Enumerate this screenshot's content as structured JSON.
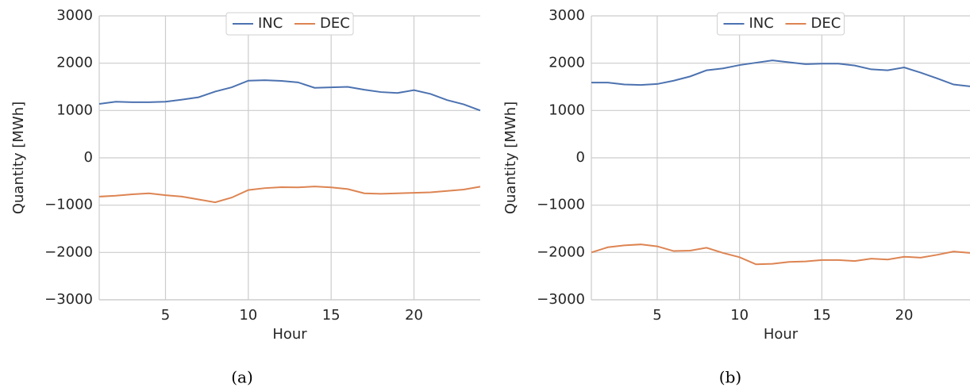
{
  "chart_data": [
    {
      "type": "line",
      "xlabel": "Hour",
      "ylabel": "Quantity [MWh]",
      "caption": "(a)",
      "x": [
        1,
        2,
        3,
        4,
        5,
        6,
        7,
        8,
        9,
        10,
        11,
        12,
        13,
        14,
        15,
        16,
        17,
        18,
        19,
        20,
        21,
        22,
        23,
        24
      ],
      "series": [
        {
          "name": "INC",
          "color": "#4c72b0",
          "values": [
            1140,
            1185,
            1175,
            1175,
            1185,
            1230,
            1280,
            1400,
            1490,
            1630,
            1640,
            1625,
            1595,
            1480,
            1490,
            1500,
            1440,
            1390,
            1370,
            1430,
            1350,
            1220,
            1130,
            1000
          ]
        },
        {
          "name": "DEC",
          "color": "#dd8452",
          "values": [
            -820,
            -800,
            -770,
            -750,
            -790,
            -820,
            -880,
            -940,
            -840,
            -680,
            -640,
            -620,
            -625,
            -605,
            -625,
            -660,
            -750,
            -760,
            -750,
            -740,
            -730,
            -700,
            -670,
            -610
          ]
        }
      ],
      "xlim": [
        1,
        24
      ],
      "xticks": [
        5,
        10,
        15,
        20
      ],
      "ylim": [
        -3000,
        3000
      ],
      "yticks": [
        {
          "value": -3000,
          "label": "−3000"
        },
        {
          "value": -2000,
          "label": "−2000"
        },
        {
          "value": -1000,
          "label": "−1000"
        },
        0,
        1000,
        2000,
        3000
      ],
      "grid": true,
      "legend": "upper center"
    },
    {
      "type": "line",
      "xlabel": "Hour",
      "ylabel": "Quantity [MWh]",
      "caption": "(b)",
      "x": [
        1,
        2,
        3,
        4,
        5,
        6,
        7,
        8,
        9,
        10,
        11,
        12,
        13,
        14,
        15,
        16,
        17,
        18,
        19,
        20,
        21,
        22,
        23,
        24
      ],
      "series": [
        {
          "name": "INC",
          "color": "#4c72b0",
          "values": [
            1590,
            1590,
            1550,
            1540,
            1560,
            1630,
            1720,
            1850,
            1890,
            1960,
            2010,
            2060,
            2020,
            1980,
            1990,
            1990,
            1950,
            1870,
            1850,
            1910,
            1800,
            1680,
            1550,
            1510
          ]
        },
        {
          "name": "DEC",
          "color": "#dd8452",
          "values": [
            -2000,
            -1890,
            -1850,
            -1830,
            -1870,
            -1970,
            -1960,
            -1900,
            -2010,
            -2100,
            -2250,
            -2240,
            -2200,
            -2190,
            -2160,
            -2160,
            -2180,
            -2130,
            -2150,
            -2090,
            -2110,
            -2050,
            -1980,
            -2010
          ]
        }
      ],
      "xlim": [
        1,
        24
      ],
      "xticks": [
        5,
        10,
        15,
        20
      ],
      "ylim": [
        -3000,
        3000
      ],
      "yticks": [
        {
          "value": -3000,
          "label": "−3000"
        },
        {
          "value": -2000,
          "label": "−2000"
        },
        {
          "value": -1000,
          "label": "−1000"
        },
        0,
        1000,
        2000,
        3000
      ],
      "grid": true,
      "legend": "upper center"
    }
  ]
}
